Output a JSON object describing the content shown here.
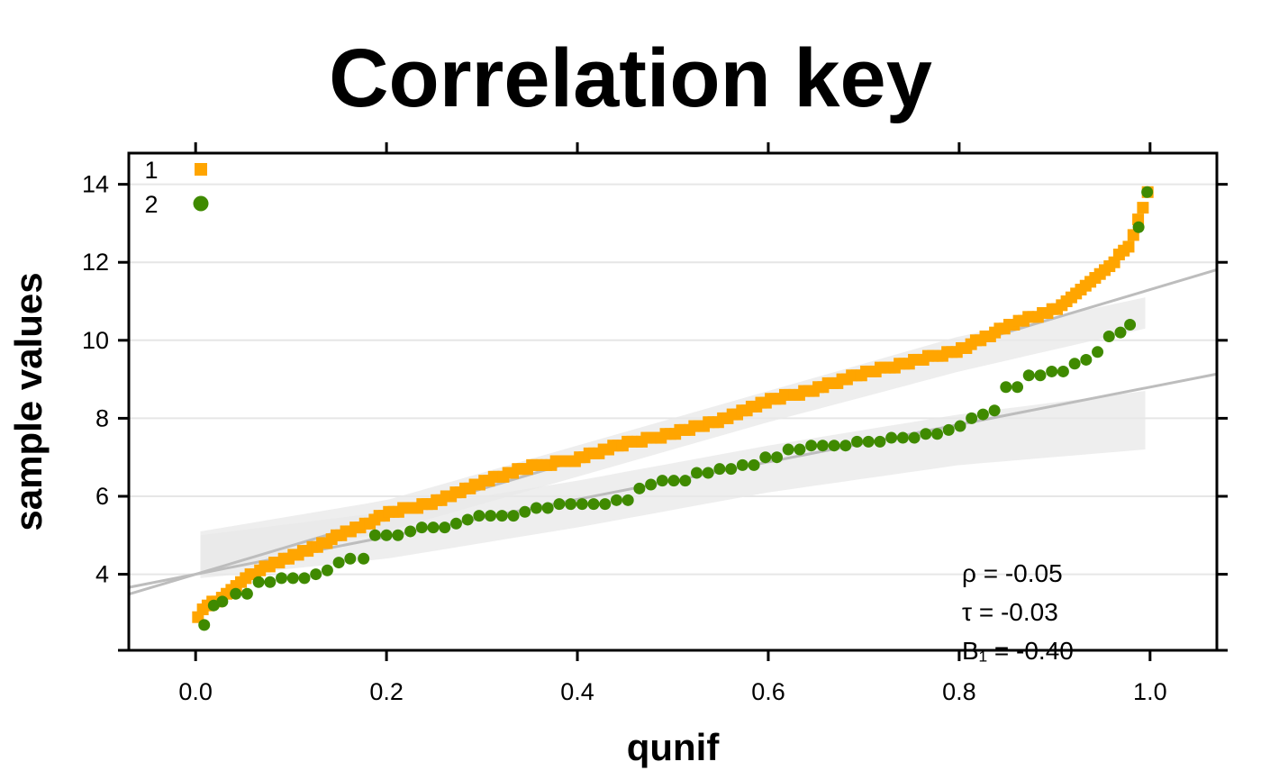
{
  "chart_data": {
    "type": "scatter",
    "title": "Correlation key",
    "xlabel": "qunif",
    "ylabel": "sample values",
    "xlim": [
      -0.07,
      1.07
    ],
    "ylim": [
      2.05,
      14.8
    ],
    "x_ticks": [
      {
        "value": 0.0,
        "label": "0.0"
      },
      {
        "value": 0.2,
        "label": "0.2"
      },
      {
        "value": 0.4,
        "label": "0.4"
      },
      {
        "value": 0.6,
        "label": "0.6"
      },
      {
        "value": 0.8,
        "label": "0.8"
      },
      {
        "value": 1.0,
        "label": "1.0"
      }
    ],
    "y_ticks": [
      {
        "value": 4,
        "label": "4"
      },
      {
        "value": 6,
        "label": "6"
      },
      {
        "value": 8,
        "label": "8"
      },
      {
        "value": 10,
        "label": "10"
      },
      {
        "value": 12,
        "label": "12"
      },
      {
        "value": 14,
        "label": "14"
      }
    ],
    "grid": {
      "horizontal": true,
      "color": "#e6e6e6"
    },
    "legend": {
      "placement": "top-left"
    },
    "series": [
      {
        "name": "1",
        "marker": "square",
        "color": "#ffa500",
        "n": 200,
        "quantile_profile": [
          [
            0.0,
            2.9
          ],
          [
            0.02,
            3.3
          ],
          [
            0.05,
            3.85
          ],
          [
            0.08,
            4.25
          ],
          [
            0.12,
            4.65
          ],
          [
            0.17,
            5.2
          ],
          [
            0.2,
            5.55
          ],
          [
            0.25,
            5.85
          ],
          [
            0.3,
            6.35
          ],
          [
            0.35,
            6.75
          ],
          [
            0.4,
            6.95
          ],
          [
            0.45,
            7.35
          ],
          [
            0.5,
            7.6
          ],
          [
            0.55,
            7.95
          ],
          [
            0.6,
            8.45
          ],
          [
            0.65,
            8.75
          ],
          [
            0.7,
            9.15
          ],
          [
            0.75,
            9.45
          ],
          [
            0.8,
            9.75
          ],
          [
            0.85,
            10.35
          ],
          [
            0.9,
            10.8
          ],
          [
            0.95,
            11.7
          ],
          [
            0.98,
            12.5
          ],
          [
            1.0,
            14.0
          ]
        ],
        "fit_line": {
          "intercept": 4.0,
          "slope": 7.3
        },
        "band": {
          "x_start": 0.005,
          "x_end": 0.995,
          "upper": [
            [
              0.005,
              5.1
            ],
            [
              0.2,
              5.9
            ],
            [
              0.4,
              7.3
            ],
            [
              0.6,
              8.7
            ],
            [
              0.8,
              10.1
            ],
            [
              0.995,
              11.1
            ]
          ],
          "lower": [
            [
              0.005,
              4.0
            ],
            [
              0.2,
              5.1
            ],
            [
              0.4,
              6.5
            ],
            [
              0.6,
              7.9
            ],
            [
              0.8,
              9.2
            ],
            [
              0.995,
              10.3
            ]
          ]
        }
      },
      {
        "name": "2",
        "marker": "circle",
        "color": "#3f8a00",
        "points": [
          [
            0.009,
            2.7
          ],
          [
            0.019,
            3.2
          ],
          [
            0.028,
            3.3
          ],
          [
            0.042,
            3.5
          ],
          [
            0.054,
            3.5
          ],
          [
            0.066,
            3.8
          ],
          [
            0.078,
            3.8
          ],
          [
            0.09,
            3.9
          ],
          [
            0.102,
            3.9
          ],
          [
            0.114,
            3.9
          ],
          [
            0.126,
            4.0
          ],
          [
            0.138,
            4.1
          ],
          [
            0.15,
            4.3
          ],
          [
            0.162,
            4.4
          ],
          [
            0.176,
            4.4
          ],
          [
            0.188,
            5.0
          ],
          [
            0.2,
            5.0
          ],
          [
            0.212,
            5.0
          ],
          [
            0.225,
            5.1
          ],
          [
            0.237,
            5.2
          ],
          [
            0.249,
            5.2
          ],
          [
            0.261,
            5.2
          ],
          [
            0.273,
            5.3
          ],
          [
            0.285,
            5.4
          ],
          [
            0.297,
            5.5
          ],
          [
            0.309,
            5.5
          ],
          [
            0.321,
            5.5
          ],
          [
            0.333,
            5.5
          ],
          [
            0.345,
            5.6
          ],
          [
            0.357,
            5.7
          ],
          [
            0.369,
            5.7
          ],
          [
            0.381,
            5.8
          ],
          [
            0.393,
            5.8
          ],
          [
            0.405,
            5.8
          ],
          [
            0.417,
            5.8
          ],
          [
            0.429,
            5.8
          ],
          [
            0.441,
            5.9
          ],
          [
            0.453,
            5.9
          ],
          [
            0.465,
            6.2
          ],
          [
            0.477,
            6.3
          ],
          [
            0.489,
            6.4
          ],
          [
            0.501,
            6.4
          ],
          [
            0.513,
            6.4
          ],
          [
            0.525,
            6.6
          ],
          [
            0.537,
            6.6
          ],
          [
            0.549,
            6.7
          ],
          [
            0.561,
            6.7
          ],
          [
            0.573,
            6.8
          ],
          [
            0.585,
            6.8
          ],
          [
            0.597,
            7.0
          ],
          [
            0.609,
            7.0
          ],
          [
            0.621,
            7.2
          ],
          [
            0.633,
            7.2
          ],
          [
            0.645,
            7.3
          ],
          [
            0.657,
            7.3
          ],
          [
            0.669,
            7.3
          ],
          [
            0.681,
            7.3
          ],
          [
            0.693,
            7.4
          ],
          [
            0.705,
            7.4
          ],
          [
            0.717,
            7.4
          ],
          [
            0.729,
            7.5
          ],
          [
            0.741,
            7.5
          ],
          [
            0.753,
            7.5
          ],
          [
            0.765,
            7.6
          ],
          [
            0.777,
            7.6
          ],
          [
            0.789,
            7.7
          ],
          [
            0.801,
            7.8
          ],
          [
            0.813,
            8.0
          ],
          [
            0.825,
            8.1
          ],
          [
            0.837,
            8.2
          ],
          [
            0.849,
            8.8
          ],
          [
            0.861,
            8.8
          ],
          [
            0.873,
            9.1
          ],
          [
            0.885,
            9.1
          ],
          [
            0.897,
            9.2
          ],
          [
            0.909,
            9.2
          ],
          [
            0.921,
            9.4
          ],
          [
            0.933,
            9.5
          ],
          [
            0.945,
            9.7
          ],
          [
            0.957,
            10.1
          ],
          [
            0.969,
            10.2
          ],
          [
            0.979,
            10.4
          ],
          [
            0.988,
            12.9
          ],
          [
            0.997,
            13.8
          ]
        ],
        "fit_line": {
          "intercept": 4.0,
          "slope": 4.8
        },
        "band": {
          "x_start": 0.005,
          "x_end": 0.995,
          "upper": [
            [
              0.005,
              5.0
            ],
            [
              0.2,
              5.6
            ],
            [
              0.4,
              6.4
            ],
            [
              0.6,
              7.3
            ],
            [
              0.8,
              8.1
            ],
            [
              0.995,
              8.7
            ]
          ],
          "lower": [
            [
              0.005,
              3.9
            ],
            [
              0.2,
              4.4
            ],
            [
              0.4,
              5.2
            ],
            [
              0.6,
              6.1
            ],
            [
              0.8,
              6.8
            ],
            [
              0.995,
              7.2
            ]
          ]
        }
      }
    ],
    "stats": [
      {
        "label": "ρ = -0.05"
      },
      {
        "label": "τ = -0.03"
      },
      {
        "label": "B₁ = -0.40"
      }
    ],
    "colors": {
      "band_fill": "#e8e8e8",
      "fit_line": "#bdbdbd",
      "frame": "#000000"
    }
  }
}
